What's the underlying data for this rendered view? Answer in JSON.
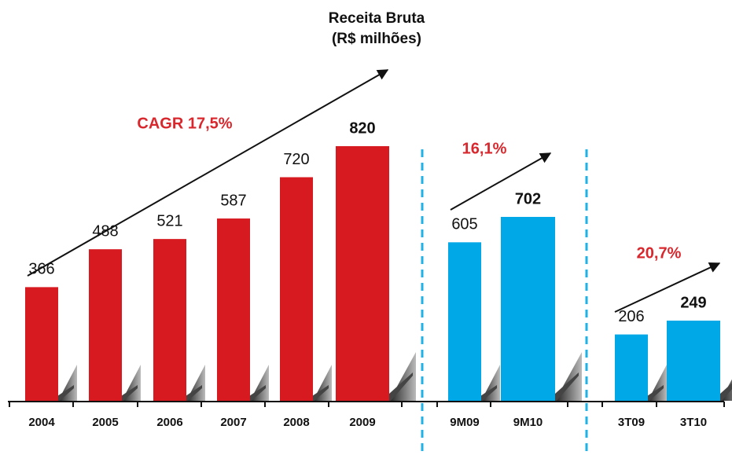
{
  "chart_data": [
    {
      "type": "bar",
      "title": "Receita Bruta",
      "subtitle": "(R$ milhões)",
      "annotation": "CAGR 17,5%",
      "categories": [
        "2004",
        "2005",
        "2006",
        "2007",
        "2008",
        "2009"
      ],
      "values": [
        366,
        488,
        521,
        587,
        720,
        820
      ],
      "color": "#d71920"
    },
    {
      "type": "bar",
      "annotation": "16,1%",
      "categories": [
        "9M09",
        "9M10"
      ],
      "values": [
        605,
        702
      ],
      "color": "#00a8e8"
    },
    {
      "type": "bar",
      "annotation": "20,7%",
      "categories": [
        "3T09",
        "3T10"
      ],
      "values": [
        206,
        249
      ],
      "color": "#00a8e8"
    }
  ]
}
